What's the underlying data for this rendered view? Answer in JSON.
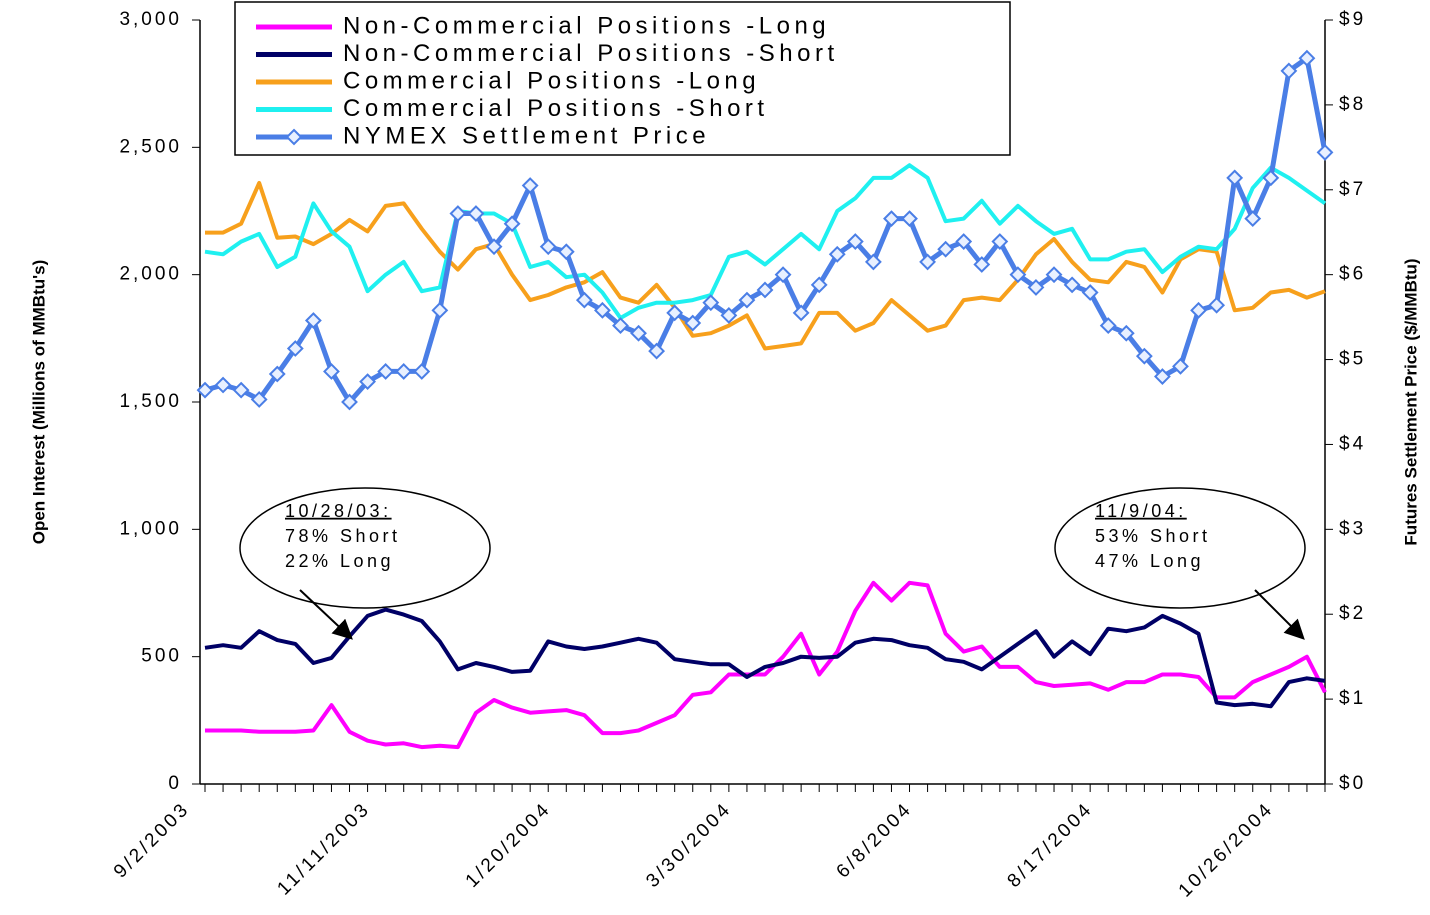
{
  "chart_data": {
    "type": "line",
    "y_label": "Open Interest (Millions of MMBtu's)",
    "y2_label": "Futures Settlement Price ($/MMBtu)",
    "categories": [
      "9/2/2003",
      null,
      null,
      null,
      null,
      null,
      null,
      null,
      null,
      null,
      "11/11/2003",
      null,
      null,
      null,
      null,
      null,
      null,
      null,
      null,
      null,
      "1/20/2004",
      null,
      null,
      null,
      null,
      null,
      null,
      null,
      null,
      null,
      "3/30/2004",
      null,
      null,
      null,
      null,
      null,
      null,
      null,
      null,
      null,
      "6/8/2004",
      null,
      null,
      null,
      null,
      null,
      null,
      null,
      null,
      null,
      "8/17/2004",
      null,
      null,
      null,
      null,
      null,
      null,
      null,
      null,
      null,
      "10/26/2004",
      null,
      null
    ],
    "ylim": [
      0,
      3000
    ],
    "yticks": [
      0,
      500,
      {
        "value": 1000,
        "label": "1,000"
      },
      {
        "value": 1500,
        "label": "1,500"
      },
      {
        "value": 2000,
        "label": "2,000"
      },
      {
        "value": 2500,
        "label": "2,500"
      },
      {
        "value": 3000,
        "label": "3,000"
      }
    ],
    "y2lim": [
      0,
      9
    ],
    "y2ticks": [
      {
        "value": 0,
        "label": "$0"
      },
      {
        "value": 1,
        "label": "$1"
      },
      {
        "value": 2,
        "label": "$2"
      },
      {
        "value": 3,
        "label": "$3"
      },
      {
        "value": 4,
        "label": "$4"
      },
      {
        "value": 5,
        "label": "$5"
      },
      {
        "value": 6,
        "label": "$6"
      },
      {
        "value": 7,
        "label": "$7"
      },
      {
        "value": 8,
        "label": "$8"
      },
      {
        "value": 9,
        "label": "$9"
      }
    ],
    "series": [
      {
        "name": "Non-Commercial Positions -Long",
        "color": "#ff00ff",
        "values": [
          210,
          210,
          210,
          205,
          205,
          205,
          210,
          310,
          205,
          170,
          155,
          160,
          145,
          150,
          145,
          280,
          330,
          300,
          280,
          285,
          290,
          270,
          200,
          200,
          210,
          240,
          270,
          350,
          360,
          430,
          430,
          430,
          500,
          590,
          430,
          520,
          680,
          790,
          720,
          790,
          780,
          590,
          520,
          540,
          460,
          460,
          400,
          385,
          390,
          395,
          370,
          400,
          400,
          430,
          430,
          420,
          340,
          340,
          400,
          430,
          460,
          500,
          360
        ]
      },
      {
        "name": "Non-Commercial Positions -Short",
        "color": "#000066",
        "values": [
          535,
          545,
          535,
          600,
          565,
          550,
          475,
          495,
          580,
          660,
          685,
          665,
          640,
          560,
          450,
          475,
          460,
          440,
          445,
          560,
          540,
          530,
          540,
          555,
          570,
          555,
          490,
          480,
          470,
          470,
          420,
          460,
          475,
          500,
          495,
          500,
          555,
          570,
          565,
          545,
          535,
          490,
          480,
          450,
          500,
          550,
          600,
          500,
          560,
          510,
          610,
          600,
          615,
          660,
          630,
          590,
          320,
          310,
          315,
          305,
          400,
          415,
          405
        ]
      },
      {
        "name": "Commercial Positions -Long",
        "color": "#f7a01c",
        "values": [
          2165,
          2165,
          2200,
          2360,
          2145,
          2150,
          2120,
          2160,
          2215,
          2170,
          2270,
          2280,
          2180,
          2090,
          2020,
          2100,
          2120,
          2000,
          1900,
          1920,
          1950,
          1970,
          2010,
          1910,
          1890,
          1960,
          1870,
          1760,
          1770,
          1800,
          1840,
          1710,
          1720,
          1730,
          1850,
          1850,
          1780,
          1810,
          1900,
          1840,
          1780,
          1800,
          1900,
          1910,
          1900,
          1980,
          2080,
          2140,
          2050,
          1980,
          1970,
          2050,
          2030,
          1930,
          2060,
          2100,
          2090,
          1860,
          1870,
          1930,
          1940,
          1910,
          1935
        ]
      },
      {
        "name": "Commercial Positions -Short",
        "color": "#1ff0f0",
        "values": [
          2090,
          2080,
          2130,
          2160,
          2030,
          2070,
          2280,
          2170,
          2110,
          1935,
          2000,
          2050,
          1935,
          1950,
          2250,
          2240,
          2240,
          2200,
          2030,
          2050,
          1990,
          2000,
          1930,
          1830,
          1870,
          1890,
          1890,
          1900,
          1920,
          2070,
          2090,
          2040,
          2100,
          2160,
          2100,
          2250,
          2300,
          2380,
          2380,
          2430,
          2380,
          2210,
          2220,
          2290,
          2200,
          2270,
          2210,
          2160,
          2180,
          2060,
          2060,
          2090,
          2100,
          2010,
          2070,
          2110,
          2100,
          2180,
          2340,
          2420,
          2380,
          2330,
          2280
        ]
      },
      {
        "name": "NYMEX Settlement Price",
        "color": "#4a7ee6",
        "axis": "y2",
        "marker": "diamond",
        "values": [
          4.64,
          4.7,
          4.64,
          4.53,
          4.83,
          5.13,
          5.46,
          4.86,
          4.5,
          4.74,
          4.86,
          4.86,
          4.86,
          5.58,
          6.72,
          6.72,
          6.33,
          6.6,
          7.05,
          6.33,
          6.27,
          5.7,
          5.58,
          5.4,
          5.31,
          5.1,
          5.55,
          5.43,
          5.67,
          5.52,
          5.7,
          5.82,
          6.0,
          5.55,
          5.88,
          6.24,
          6.39,
          6.15,
          6.66,
          6.66,
          6.15,
          6.3,
          6.39,
          6.12,
          6.39,
          6.0,
          5.85,
          6.0,
          5.88,
          5.79,
          5.4,
          5.31,
          5.04,
          4.8,
          4.92,
          5.58,
          5.64,
          7.14,
          6.66,
          7.14,
          8.4,
          8.55,
          7.44
        ]
      }
    ],
    "annotations": [
      {
        "lines": [
          "10/28/03:",
          "78% Short",
          "22% Long"
        ]
      },
      {
        "lines": [
          "11/9/04:",
          "53% Short",
          "47% Long"
        ]
      }
    ]
  }
}
